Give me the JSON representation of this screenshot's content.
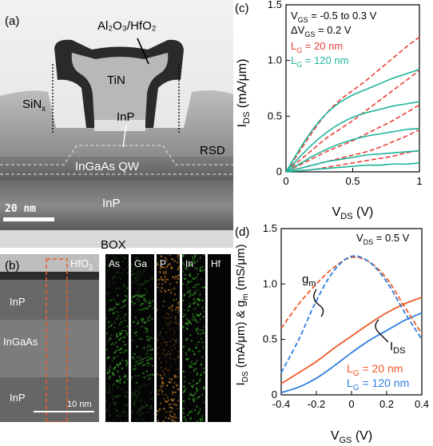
{
  "panels": {
    "a": "(a)",
    "b": "(b)",
    "c": "(c)",
    "d": "(d)"
  },
  "tem_a": {
    "gate_oxide": "Al₂O₃/HfO₂",
    "gate_metal": "TiN",
    "spacer": "SiN",
    "spacer_sub": "x",
    "channel_cap": "InP",
    "source_drain": "RSD",
    "qw": "InGaAs QW",
    "substrate": "InP",
    "scalebar": "20 nm",
    "box": "BOX"
  },
  "tem_b": {
    "hfo2": "HfO",
    "hfo2_sub": "2",
    "top_inp": "InP",
    "ingaas": "InGaAs",
    "bottom_inp": "InP",
    "scalebar": "10 nm",
    "eds_maps": [
      {
        "label": "As",
        "color": "#3aa52a"
      },
      {
        "label": "Ga",
        "color": "#3aa52a"
      },
      {
        "label": "P",
        "color": "#c9822a"
      },
      {
        "label": "In",
        "color": "#3aa52a"
      },
      {
        "label": "Hf",
        "color": "#1b3fd0"
      }
    ]
  },
  "colors": {
    "red": "#e8413a",
    "teal": "#1fb59b",
    "blue": "#2f7fe0",
    "orange_red": "#f05a28"
  },
  "chart_data": [
    {
      "panel": "(c)",
      "type": "line",
      "xlabel": "V",
      "xlabel_sub": "DS",
      "xlabel_unit": "(V)",
      "ylabel": "I",
      "ylabel_sub": "DS",
      "ylabel_unit": "(mA/μm)",
      "xlim": [
        0,
        1
      ],
      "ylim": [
        0,
        1.5
      ],
      "x_ticks": [
        "0",
        "0.5",
        "1"
      ],
      "y_ticks": [
        "0",
        "0.5",
        "1.0",
        "1.5"
      ],
      "annotations": [
        "V_GS = -0.5 to 0.3 V",
        "ΔV_GS = 0.2 V"
      ],
      "legend": [
        {
          "text": "L_G = 20 nm",
          "color": "#e8413a",
          "dash": true
        },
        {
          "text": "L_G = 120 nm",
          "color": "#1fb59b",
          "dash": false
        }
      ],
      "series": [
        {
          "name": "L_G = 20 nm",
          "color": "#e8413a",
          "dash": true,
          "curves": [
            {
              "x": [
                0,
                0.1,
                0.2,
                0.3,
                0.4,
                0.5,
                0.6,
                0.7,
                0.8,
                0.9,
                1.0
              ],
              "y": [
                0,
                0.18,
                0.36,
                0.52,
                0.64,
                0.73,
                0.82,
                0.92,
                1.02,
                1.12,
                1.21
              ]
            },
            {
              "x": [
                0,
                0.1,
                0.2,
                0.3,
                0.4,
                0.5,
                0.6,
                0.7,
                0.8,
                0.9,
                1.0
              ],
              "y": [
                0,
                0.1,
                0.2,
                0.3,
                0.38,
                0.46,
                0.55,
                0.64,
                0.73,
                0.82,
                0.91
              ]
            },
            {
              "x": [
                0,
                0.1,
                0.2,
                0.3,
                0.4,
                0.5,
                0.6,
                0.7,
                0.8,
                0.9,
                1.0
              ],
              "y": [
                0,
                0.06,
                0.12,
                0.18,
                0.23,
                0.28,
                0.34,
                0.4,
                0.46,
                0.53,
                0.6
              ]
            },
            {
              "x": [
                0,
                0.1,
                0.2,
                0.3,
                0.4,
                0.5,
                0.6,
                0.7,
                0.8,
                0.9,
                1.0
              ],
              "y": [
                0,
                0.03,
                0.06,
                0.09,
                0.12,
                0.15,
                0.18,
                0.22,
                0.27,
                0.32,
                0.38
              ]
            },
            {
              "x": [
                0,
                0.1,
                0.2,
                0.3,
                0.4,
                0.5,
                0.6,
                0.7,
                0.8,
                0.9,
                1.0
              ],
              "y": [
                0,
                0.01,
                0.02,
                0.04,
                0.06,
                0.08,
                0.1,
                0.12,
                0.14,
                0.17,
                0.19
              ]
            }
          ]
        },
        {
          "name": "L_G = 120 nm",
          "color": "#1fb59b",
          "dash": false,
          "curves": [
            {
              "x": [
                0,
                0.1,
                0.2,
                0.3,
                0.4,
                0.5,
                0.6,
                0.7,
                0.8,
                0.9,
                1.0
              ],
              "y": [
                0,
                0.2,
                0.38,
                0.52,
                0.62,
                0.69,
                0.74,
                0.79,
                0.84,
                0.88,
                0.92
              ]
            },
            {
              "x": [
                0,
                0.1,
                0.2,
                0.3,
                0.4,
                0.5,
                0.6,
                0.7,
                0.8,
                0.9,
                1.0
              ],
              "y": [
                0,
                0.13,
                0.25,
                0.35,
                0.43,
                0.49,
                0.53,
                0.56,
                0.59,
                0.61,
                0.63
              ]
            },
            {
              "x": [
                0,
                0.1,
                0.2,
                0.3,
                0.4,
                0.5,
                0.6,
                0.7,
                0.8,
                0.9,
                1.0
              ],
              "y": [
                0,
                0.07,
                0.14,
                0.2,
                0.25,
                0.29,
                0.32,
                0.34,
                0.36,
                0.38,
                0.39
              ]
            },
            {
              "x": [
                0,
                0.1,
                0.2,
                0.3,
                0.4,
                0.5,
                0.6,
                0.7,
                0.8,
                0.9,
                1.0
              ],
              "y": [
                0,
                0.03,
                0.06,
                0.09,
                0.11,
                0.13,
                0.15,
                0.16,
                0.17,
                0.18,
                0.19
              ]
            },
            {
              "x": [
                0,
                0.1,
                0.2,
                0.3,
                0.4,
                0.5,
                0.6,
                0.7,
                0.8,
                0.9,
                1.0
              ],
              "y": [
                0,
                0.01,
                0.02,
                0.03,
                0.04,
                0.05,
                0.06,
                0.06,
                0.07,
                0.07,
                0.08
              ]
            }
          ]
        }
      ]
    },
    {
      "panel": "(d)",
      "type": "line",
      "xlabel": "V",
      "xlabel_sub": "GS",
      "xlabel_unit": "(V)",
      "ylabel": "I",
      "ylabel_sub": "DS",
      "ylabel_unit": "(mA/μm) & g",
      "ylabel_sub2": "m",
      "ylabel_unit2": "(mS/μm)",
      "xlim": [
        -0.4,
        0.4
      ],
      "ylim": [
        0,
        1.5
      ],
      "x_ticks": [
        "-0.4",
        "-0.2",
        "0",
        "0.2",
        "0.4"
      ],
      "y_ticks": [
        "0",
        "0.5",
        "1.0",
        "1.5"
      ],
      "annotations": [
        "V_DS = 0.5 V",
        "g_m",
        "I_DS"
      ],
      "legend": [
        {
          "text": "L_G = 20 nm",
          "color": "#f05a28"
        },
        {
          "text": "L_G = 120 nm",
          "color": "#2f7fe0"
        }
      ],
      "series": [
        {
          "name": "I_DS, L_G = 20 nm",
          "color": "#f05a28",
          "dash": false,
          "x": [
            -0.4,
            -0.3,
            -0.2,
            -0.1,
            0,
            0.1,
            0.2,
            0.3,
            0.4
          ],
          "y": [
            0.1,
            0.2,
            0.3,
            0.42,
            0.53,
            0.64,
            0.74,
            0.82,
            0.88
          ]
        },
        {
          "name": "I_DS, L_G = 120 nm",
          "color": "#2f7fe0",
          "dash": false,
          "x": [
            -0.4,
            -0.3,
            -0.2,
            -0.1,
            0,
            0.1,
            0.2,
            0.3,
            0.4
          ],
          "y": [
            0.02,
            0.07,
            0.15,
            0.26,
            0.38,
            0.49,
            0.58,
            0.67,
            0.74
          ]
        },
        {
          "name": "g_m, L_G = 20 nm",
          "color": "#f05a28",
          "dash": true,
          "x": [
            -0.4,
            -0.3,
            -0.2,
            -0.1,
            0,
            0.1,
            0.2,
            0.3,
            0.4
          ],
          "y": [
            0.6,
            0.82,
            1.0,
            1.15,
            1.24,
            1.2,
            1.05,
            0.8,
            0.55
          ]
        },
        {
          "name": "g_m, L_G = 120 nm",
          "color": "#2f7fe0",
          "dash": true,
          "x": [
            -0.4,
            -0.3,
            -0.2,
            -0.1,
            0,
            0.1,
            0.2,
            0.3,
            0.4
          ],
          "y": [
            0.2,
            0.5,
            0.85,
            1.12,
            1.25,
            1.2,
            1.02,
            0.75,
            0.5
          ]
        }
      ]
    }
  ]
}
